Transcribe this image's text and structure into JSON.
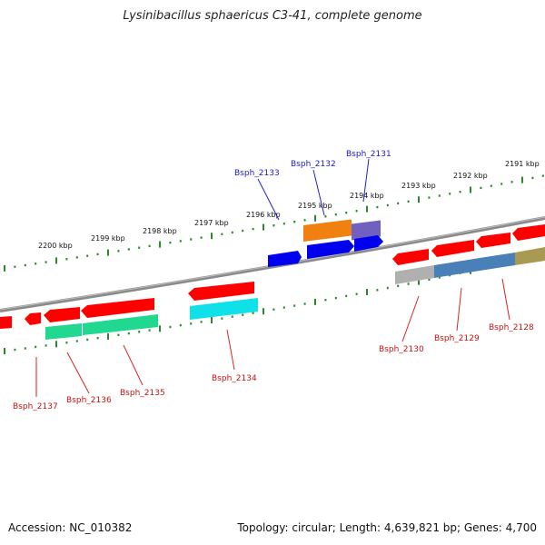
{
  "title": "Lysinibacillus sphaericus C3-41, complete genome",
  "footer": {
    "accession_text": "Accession: NC_010382",
    "summary_text": "Topology: circular; Length: 4,639,821 bp; Genes: 4,700"
  },
  "colors": {
    "backbone": "#8a8a8a",
    "tick": "#2a8a2a",
    "forward_label": "#1a1acc",
    "reverse_label": "#cc1111",
    "label_line_forward": "#2222cc",
    "label_line_reverse": "#dd2222"
  },
  "scale_labels": [
    {
      "text": "2200 kbp"
    },
    {
      "text": "2199 kbp"
    },
    {
      "text": "2198 kbp"
    },
    {
      "text": "2197 kbp"
    },
    {
      "text": "2196 kbp"
    },
    {
      "text": "2195 kbp"
    },
    {
      "text": "2194 kbp"
    },
    {
      "text": "2193 kbp"
    },
    {
      "text": "2192 kbp"
    },
    {
      "text": "2191 kbp"
    }
  ],
  "forward_labels": [
    {
      "name": "Bsph_2133"
    },
    {
      "name": "Bsph_2132"
    },
    {
      "name": "Bsph_2131"
    }
  ],
  "reverse_labels": [
    {
      "name": "Bsph_2137"
    },
    {
      "name": "Bsph_2136"
    },
    {
      "name": "Bsph_2135"
    },
    {
      "name": "Bsph_2134"
    },
    {
      "name": "Bsph_2130"
    },
    {
      "name": "Bsph_2129"
    },
    {
      "name": "Bsph_2128"
    }
  ],
  "feature_colors": {
    "cds": "#ff0000",
    "gene_forward": "#0000ee",
    "orange_block": "#f08010",
    "purple_block": "#7060c0",
    "teal_block": "#20d890",
    "cyan_block": "#10e0e8",
    "grey_block": "#b0b0b0",
    "steelblue_block": "#4a80b8",
    "olive_block": "#a89a50"
  }
}
